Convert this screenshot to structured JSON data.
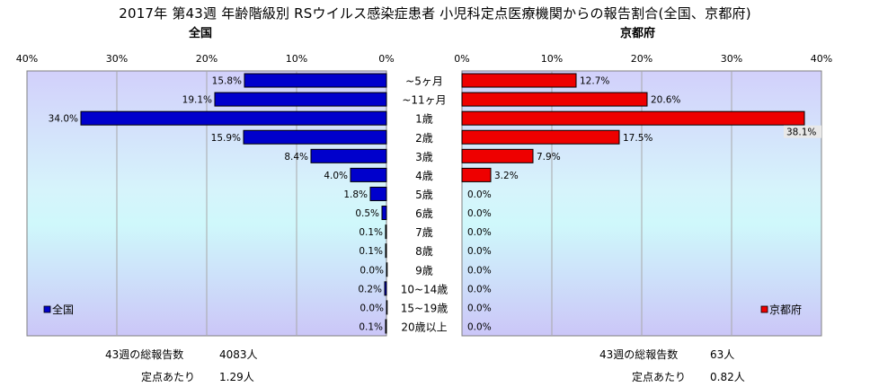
{
  "title": "2017年 第43週 年齢階級別 RSウイルス感染症患者 小児科定点医療機関からの報告割合(全国、京都府)",
  "chart_data": [
    {
      "type": "bar",
      "title": "全国",
      "orientation": "horizontal",
      "direction": "reversed",
      "color": "#0000cc",
      "categories": [
        "~5ヶ月",
        "~11ヶ月",
        "1歳",
        "2歳",
        "3歳",
        "4歳",
        "5歳",
        "6歳",
        "7歳",
        "8歳",
        "9歳",
        "10~14歳",
        "15~19歳",
        "20歳以上"
      ],
      "series": [
        {
          "name": "全国",
          "values": [
            15.8,
            19.1,
            34.0,
            15.9,
            8.4,
            4.0,
            1.8,
            0.5,
            0.1,
            0.1,
            0.0,
            0.2,
            0.0,
            0.1
          ]
        }
      ],
      "value_labels": [
        "15.8%",
        "19.1%",
        "34.0%",
        "15.9%",
        "8.4%",
        "4.0%",
        "1.8%",
        "0.5%",
        "0.1%",
        "0.1%",
        "0.0%",
        "0.2%",
        "0.0%",
        "0.1%"
      ],
      "xlim": [
        0,
        40
      ],
      "ticks": [
        "40%",
        "30%",
        "20%",
        "10%",
        "0%"
      ],
      "grid": true,
      "legend": "bottom-left"
    },
    {
      "type": "bar",
      "title": "京都府",
      "orientation": "horizontal",
      "color": "#ee0000",
      "categories": [
        "~5ヶ月",
        "~11ヶ月",
        "1歳",
        "2歳",
        "3歳",
        "4歳",
        "5歳",
        "6歳",
        "7歳",
        "8歳",
        "9歳",
        "10~14歳",
        "15~19歳",
        "20歳以上"
      ],
      "series": [
        {
          "name": "京都府",
          "values": [
            12.7,
            20.6,
            38.1,
            17.5,
            7.9,
            3.2,
            0.0,
            0.0,
            0.0,
            0.0,
            0.0,
            0.0,
            0.0,
            0.0
          ]
        }
      ],
      "value_labels": [
        "12.7%",
        "20.6%",
        "38.1%",
        "17.5%",
        "7.9%",
        "3.2%",
        "0.0%",
        "0.0%",
        "0.0%",
        "0.0%",
        "0.0%",
        "0.0%",
        "0.0%",
        "0.0%"
      ],
      "xlim": [
        0,
        40
      ],
      "ticks": [
        "0%",
        "10%",
        "20%",
        "30%",
        "40%"
      ],
      "grid": true,
      "legend": "bottom-right"
    }
  ],
  "age_labels": [
    "~5ヶ月",
    "~11ヶ月",
    "1歳",
    "2歳",
    "3歳",
    "4歳",
    "5歳",
    "6歳",
    "7歳",
    "8歳",
    "9歳",
    "10~14歳",
    "15~19歳",
    "20歳以上"
  ],
  "stats": {
    "national_total_label": "43週の総報告数",
    "national_total": "4083人",
    "national_per_label": "定点あたり",
    "national_per": "1.29人",
    "kyoto_total_label": "43週の総報告数",
    "kyoto_total": "63人",
    "kyoto_per_label": "定点あたり",
    "kyoto_per": "0.82人"
  }
}
